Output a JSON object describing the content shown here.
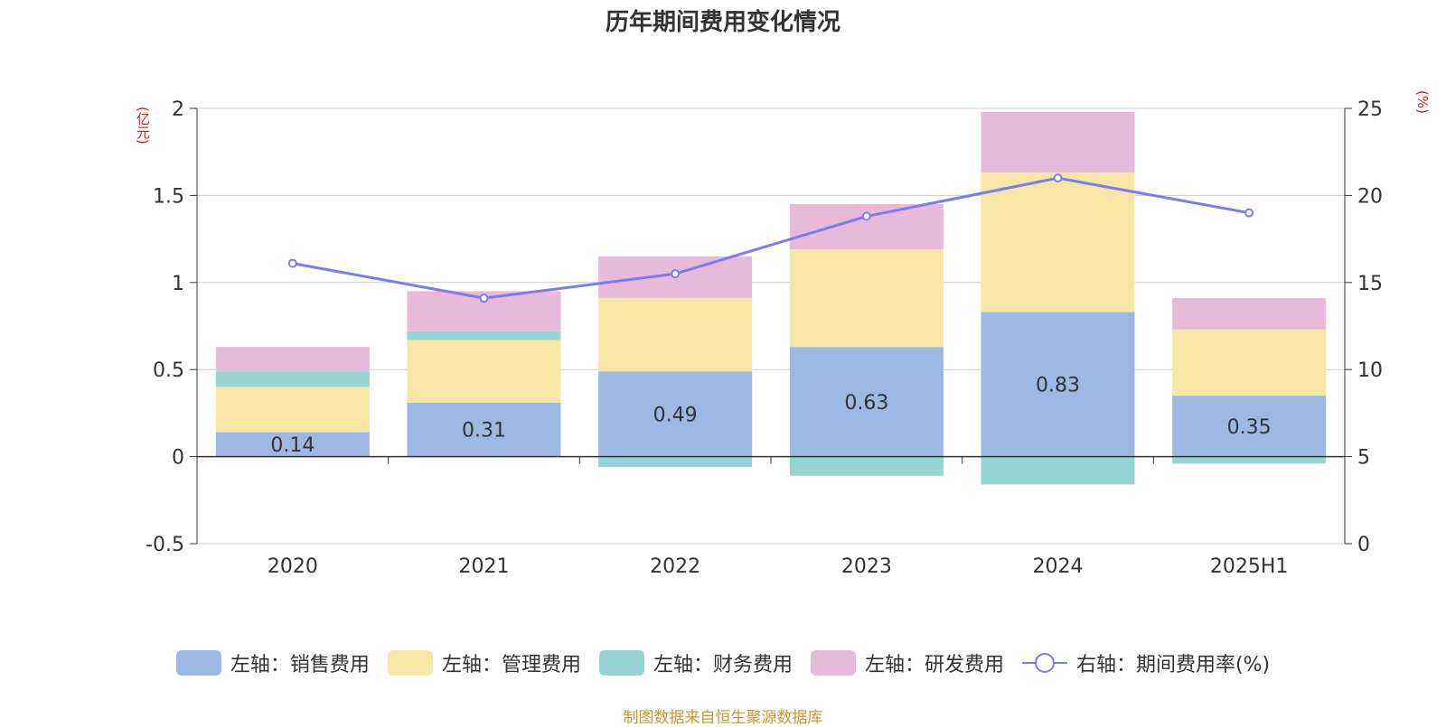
{
  "chart_data": {
    "type": "bar",
    "title": "历年期间费用变化情况",
    "left_axis_unit": "(亿元)",
    "right_axis_unit": "(%)",
    "categories": [
      "2020",
      "2021",
      "2022",
      "2023",
      "2024",
      "2025H1"
    ],
    "left_ylim": [
      -0.5,
      2
    ],
    "left_ticks": [
      "-0.5",
      "0",
      "0.5",
      "1",
      "1.5",
      "2"
    ],
    "right_ylim": [
      0,
      25
    ],
    "right_ticks": [
      "0",
      "5",
      "10",
      "15",
      "20",
      "25"
    ],
    "stacked": true,
    "grid": true,
    "legend_position": "bottom",
    "series": [
      {
        "name": "左轴：销售费用",
        "axis": "left",
        "type": "bar",
        "color": "#9db8e2",
        "values": [
          0.14,
          0.31,
          0.49,
          0.63,
          0.83,
          0.35
        ],
        "data_labels": [
          "0.14",
          "0.31",
          "0.49",
          "0.63",
          "0.83",
          "0.35"
        ]
      },
      {
        "name": "左轴：管理费用",
        "axis": "left",
        "type": "bar",
        "color": "#f8e6a6",
        "values": [
          0.26,
          0.36,
          0.42,
          0.56,
          0.8,
          0.38
        ]
      },
      {
        "name": "左轴：财务费用",
        "axis": "left",
        "type": "bar",
        "color": "#96d4d4",
        "values": [
          0.09,
          0.05,
          -0.06,
          -0.11,
          -0.16,
          -0.04
        ]
      },
      {
        "name": "左轴：研发费用",
        "axis": "left",
        "type": "bar",
        "color": "#e8bada",
        "values": [
          0.14,
          0.23,
          0.24,
          0.26,
          0.35,
          0.18
        ]
      },
      {
        "name": "右轴：期间费用率(%)",
        "axis": "right",
        "type": "line",
        "color": "#7b7cf2",
        "values": [
          16.1,
          14.1,
          15.5,
          18.8,
          21.0,
          19.0
        ]
      }
    ]
  },
  "source_text": "制图数据来自恒生聚源数据库"
}
